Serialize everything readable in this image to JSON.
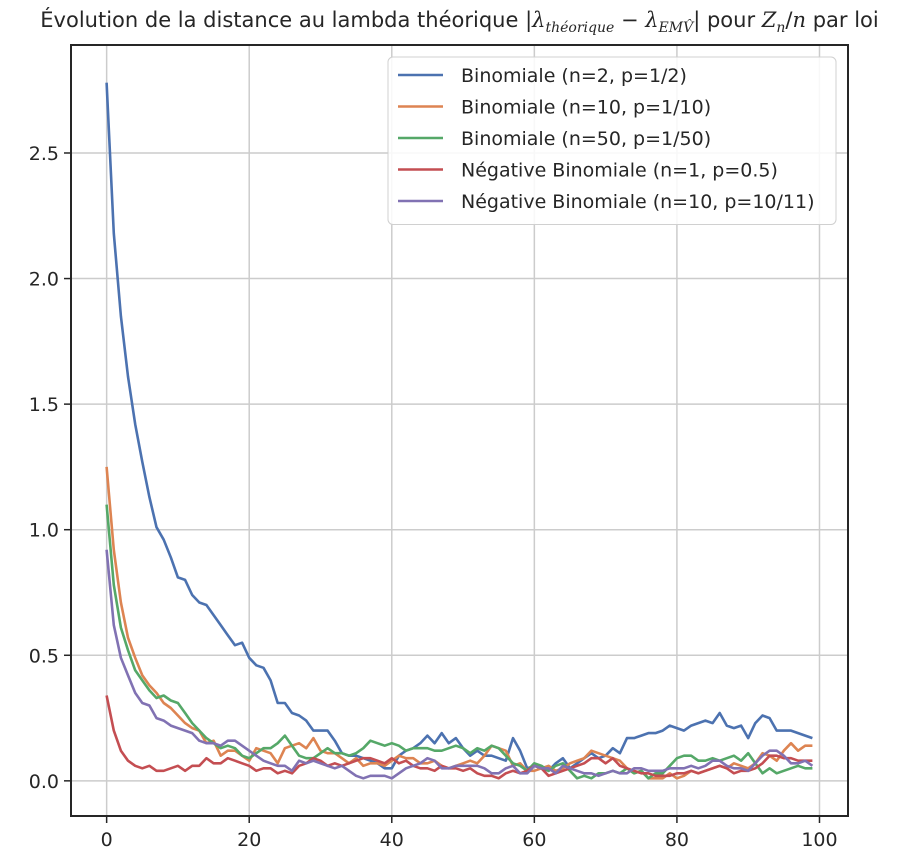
{
  "chart_data": {
    "type": "line",
    "title_prefix": "Évolution de la distance au lambda théorique ",
    "title_math": "|λthéorique − λEMV̂| pour Zn/n",
    "title_suffix": " par loi",
    "xlabel": "",
    "ylabel": "",
    "xlim": [
      -5,
      104
    ],
    "ylim": [
      -0.14,
      2.93
    ],
    "xticks": [
      0,
      20,
      40,
      60,
      80,
      100
    ],
    "yticks": [
      0.0,
      0.5,
      1.0,
      1.5,
      2.0,
      2.5
    ],
    "xtick_labels": [
      "0",
      "20",
      "40",
      "60",
      "80",
      "100"
    ],
    "ytick_labels": [
      "0.0",
      "0.5",
      "1.0",
      "1.5",
      "2.0",
      "2.5"
    ],
    "grid": true,
    "legend_position": "top-right",
    "x": [
      0,
      1,
      2,
      3,
      4,
      5,
      6,
      7,
      8,
      9,
      10,
      11,
      12,
      13,
      14,
      15,
      16,
      17,
      18,
      19,
      20,
      21,
      22,
      23,
      24,
      25,
      26,
      27,
      28,
      29,
      30,
      31,
      32,
      33,
      34,
      35,
      36,
      37,
      38,
      39,
      40,
      41,
      42,
      43,
      44,
      45,
      46,
      47,
      48,
      49,
      50,
      51,
      52,
      53,
      54,
      55,
      56,
      57,
      58,
      59,
      60,
      61,
      62,
      63,
      64,
      65,
      66,
      67,
      68,
      69,
      70,
      71,
      72,
      73,
      74,
      75,
      76,
      77,
      78,
      79,
      80,
      81,
      82,
      83,
      84,
      85,
      86,
      87,
      88,
      89,
      90,
      91,
      92,
      93,
      94,
      95,
      96,
      97,
      98,
      99
    ],
    "series": [
      {
        "name": "Binomiale (n=2, p=1/2)",
        "color": "#4c72b0",
        "values": [
          2.78,
          2.18,
          1.85,
          1.61,
          1.42,
          1.27,
          1.13,
          1.01,
          0.96,
          0.89,
          0.81,
          0.8,
          0.74,
          0.71,
          0.7,
          0.66,
          0.62,
          0.58,
          0.54,
          0.55,
          0.49,
          0.46,
          0.45,
          0.4,
          0.31,
          0.31,
          0.27,
          0.26,
          0.24,
          0.2,
          0.2,
          0.2,
          0.16,
          0.11,
          0.1,
          0.1,
          0.09,
          0.08,
          0.07,
          0.05,
          0.05,
          0.1,
          0.12,
          0.13,
          0.15,
          0.18,
          0.15,
          0.19,
          0.15,
          0.17,
          0.13,
          0.1,
          0.12,
          0.1,
          0.1,
          0.09,
          0.08,
          0.17,
          0.12,
          0.05,
          0.06,
          0.05,
          0.04,
          0.07,
          0.09,
          0.05,
          0.07,
          0.09,
          0.11,
          0.09,
          0.1,
          0.13,
          0.11,
          0.17,
          0.17,
          0.18,
          0.19,
          0.19,
          0.2,
          0.22,
          0.21,
          0.2,
          0.22,
          0.23,
          0.24,
          0.23,
          0.27,
          0.22,
          0.21,
          0.22,
          0.17,
          0.23,
          0.26,
          0.25,
          0.2,
          0.2,
          0.2,
          0.19,
          0.18,
          0.17
        ]
      },
      {
        "name": "Binomiale (n=10, p=1/10)",
        "color": "#dd8452",
        "values": [
          1.25,
          0.92,
          0.71,
          0.57,
          0.49,
          0.42,
          0.38,
          0.35,
          0.31,
          0.29,
          0.26,
          0.23,
          0.21,
          0.2,
          0.15,
          0.16,
          0.1,
          0.12,
          0.12,
          0.1,
          0.08,
          0.13,
          0.12,
          0.11,
          0.07,
          0.13,
          0.14,
          0.15,
          0.13,
          0.17,
          0.12,
          0.11,
          0.11,
          0.09,
          0.07,
          0.09,
          0.06,
          0.07,
          0.07,
          0.06,
          0.08,
          0.1,
          0.09,
          0.09,
          0.07,
          0.07,
          0.08,
          0.06,
          0.05,
          0.06,
          0.07,
          0.08,
          0.07,
          0.1,
          0.14,
          0.13,
          0.12,
          0.06,
          0.07,
          0.04,
          0.04,
          0.05,
          0.06,
          0.04,
          0.05,
          0.07,
          0.08,
          0.09,
          0.12,
          0.11,
          0.1,
          0.09,
          0.08,
          0.05,
          0.03,
          0.04,
          0.01,
          0.01,
          0.01,
          0.03,
          0.01,
          0.02,
          0.04,
          0.03,
          0.04,
          0.05,
          0.06,
          0.05,
          0.07,
          0.06,
          0.05,
          0.07,
          0.11,
          0.1,
          0.08,
          0.12,
          0.15,
          0.12,
          0.14,
          0.14
        ]
      },
      {
        "name": "Binomiale (n=50, p=1/50)",
        "color": "#55a868",
        "values": [
          1.1,
          0.78,
          0.61,
          0.52,
          0.44,
          0.4,
          0.36,
          0.33,
          0.34,
          0.32,
          0.31,
          0.27,
          0.23,
          0.2,
          0.17,
          0.15,
          0.13,
          0.14,
          0.13,
          0.1,
          0.09,
          0.11,
          0.13,
          0.13,
          0.15,
          0.18,
          0.14,
          0.1,
          0.09,
          0.09,
          0.11,
          0.13,
          0.11,
          0.11,
          0.1,
          0.11,
          0.13,
          0.16,
          0.15,
          0.14,
          0.15,
          0.14,
          0.12,
          0.13,
          0.13,
          0.13,
          0.12,
          0.12,
          0.13,
          0.14,
          0.13,
          0.11,
          0.13,
          0.12,
          0.14,
          0.13,
          0.1,
          0.07,
          0.06,
          0.04,
          0.07,
          0.06,
          0.04,
          0.06,
          0.07,
          0.04,
          0.01,
          0.02,
          0.01,
          0.03,
          0.03,
          0.04,
          0.03,
          0.05,
          0.03,
          0.04,
          0.01,
          0.03,
          0.03,
          0.06,
          0.09,
          0.1,
          0.1,
          0.08,
          0.08,
          0.09,
          0.08,
          0.09,
          0.1,
          0.08,
          0.11,
          0.07,
          0.03,
          0.05,
          0.03,
          0.04,
          0.05,
          0.06,
          0.05,
          0.05
        ]
      },
      {
        "name": "Négative Binomiale (n=1, p=0.5)",
        "color": "#c44e52",
        "values": [
          0.34,
          0.2,
          0.12,
          0.08,
          0.06,
          0.05,
          0.06,
          0.04,
          0.04,
          0.05,
          0.06,
          0.04,
          0.06,
          0.06,
          0.09,
          0.07,
          0.07,
          0.09,
          0.08,
          0.07,
          0.06,
          0.04,
          0.05,
          0.05,
          0.03,
          0.04,
          0.03,
          0.06,
          0.07,
          0.09,
          0.08,
          0.06,
          0.07,
          0.06,
          0.07,
          0.08,
          0.09,
          0.09,
          0.08,
          0.07,
          0.09,
          0.07,
          0.08,
          0.06,
          0.05,
          0.05,
          0.04,
          0.06,
          0.05,
          0.05,
          0.04,
          0.05,
          0.03,
          0.02,
          0.02,
          0.01,
          0.03,
          0.04,
          0.03,
          0.04,
          0.06,
          0.05,
          0.02,
          0.03,
          0.04,
          0.05,
          0.06,
          0.07,
          0.09,
          0.09,
          0.07,
          0.09,
          0.06,
          0.05,
          0.04,
          0.03,
          0.03,
          0.02,
          0.02,
          0.02,
          0.03,
          0.03,
          0.04,
          0.03,
          0.04,
          0.05,
          0.06,
          0.05,
          0.03,
          0.04,
          0.04,
          0.05,
          0.07,
          0.1,
          0.1,
          0.09,
          0.09,
          0.08,
          0.08,
          0.08
        ]
      },
      {
        "name": "Négative Binomiale (n=10, p=10/11)",
        "color": "#8172b3",
        "values": [
          0.92,
          0.62,
          0.49,
          0.42,
          0.35,
          0.31,
          0.3,
          0.25,
          0.24,
          0.22,
          0.21,
          0.2,
          0.19,
          0.16,
          0.15,
          0.15,
          0.14,
          0.16,
          0.16,
          0.14,
          0.12,
          0.1,
          0.08,
          0.07,
          0.06,
          0.06,
          0.04,
          0.08,
          0.07,
          0.08,
          0.07,
          0.06,
          0.05,
          0.06,
          0.04,
          0.02,
          0.01,
          0.02,
          0.02,
          0.02,
          0.01,
          0.03,
          0.05,
          0.06,
          0.07,
          0.09,
          0.08,
          0.05,
          0.05,
          0.06,
          0.06,
          0.06,
          0.06,
          0.05,
          0.03,
          0.03,
          0.05,
          0.06,
          0.03,
          0.03,
          0.06,
          0.05,
          0.05,
          0.03,
          0.06,
          0.05,
          0.04,
          0.03,
          0.03,
          0.02,
          0.03,
          0.04,
          0.03,
          0.03,
          0.05,
          0.05,
          0.04,
          0.04,
          0.04,
          0.05,
          0.05,
          0.05,
          0.06,
          0.05,
          0.06,
          0.08,
          0.08,
          0.06,
          0.05,
          0.05,
          0.04,
          0.07,
          0.1,
          0.12,
          0.12,
          0.1,
          0.07,
          0.07,
          0.08,
          0.06
        ]
      }
    ]
  }
}
